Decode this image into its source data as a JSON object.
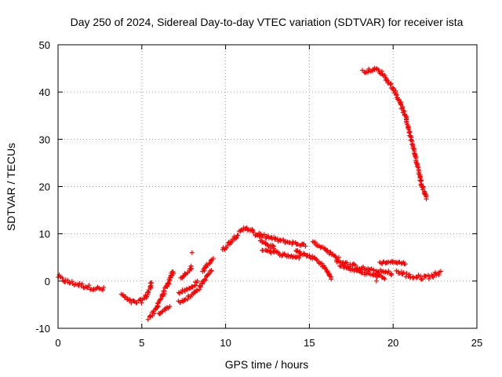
{
  "chart_data": {
    "type": "scatter",
    "title": "Day 250 of 2024, Sidereal Day-to-day VTEC variation (SDTVAR) for receiver ista",
    "xlabel": "GPS time / hours",
    "ylabel": "SDTVAR / TECUs",
    "xlim": [
      0,
      25
    ],
    "ylim": [
      -10,
      50
    ],
    "x_ticks": [
      0,
      5,
      10,
      15,
      20,
      25
    ],
    "y_ticks": [
      -10,
      0,
      10,
      20,
      30,
      40,
      50
    ],
    "grid": true,
    "marker": "plus",
    "color": "#ff0000",
    "series": [
      {
        "name": "SDTVAR",
        "segments": [
          {
            "points": [
              [
                0.0,
                1.0
              ],
              [
                0.3,
                0.2
              ],
              [
                0.6,
                -0.2
              ],
              [
                1.0,
                -0.6
              ],
              [
                1.5,
                -1.0
              ],
              [
                2.0,
                -1.4
              ],
              [
                2.5,
                -1.7
              ],
              [
                2.8,
                -1.8
              ]
            ],
            "spread": 0.9
          },
          {
            "points": [
              [
                3.8,
                -2.8
              ],
              [
                4.2,
                -4.2
              ],
              [
                4.6,
                -4.6
              ],
              [
                5.0,
                -4.2
              ],
              [
                5.3,
                -3.0
              ],
              [
                5.5,
                -1.5
              ],
              [
                5.6,
                0.2
              ]
            ],
            "spread": 0.9
          },
          {
            "points": [
              [
                5.4,
                -7.8
              ],
              [
                5.8,
                -6.5
              ],
              [
                6.0,
                -4.5
              ],
              [
                6.3,
                -2.5
              ],
              [
                6.6,
                -0.5
              ],
              [
                6.8,
                1.5
              ],
              [
                6.9,
                2.0
              ]
            ],
            "spread": 0.9
          },
          {
            "points": [
              [
                6.0,
                -7.0
              ],
              [
                6.4,
                -6.0
              ],
              [
                6.7,
                -5.2
              ]
            ],
            "spread": 0.5
          },
          {
            "points": [
              [
                7.2,
                -2.5
              ],
              [
                7.6,
                -2.0
              ],
              [
                7.9,
                -1.5
              ],
              [
                8.2,
                -0.7
              ],
              [
                8.3,
                0.0
              ]
            ],
            "spread": 0.6
          },
          {
            "points": [
              [
                7.3,
                0.5
              ],
              [
                7.6,
                1.5
              ],
              [
                7.9,
                2.5
              ],
              [
                8.0,
                3.2
              ]
            ],
            "spread": 0.5
          },
          {
            "points": [
              [
                7.2,
                -4.5
              ],
              [
                7.6,
                -3.8
              ],
              [
                8.0,
                -3.0
              ],
              [
                8.4,
                -1.5
              ],
              [
                8.8,
                0.5
              ],
              [
                9.0,
                1.5
              ],
              [
                9.2,
                2.5
              ]
            ],
            "spread": 0.7
          },
          {
            "points": [
              [
                8.6,
                2.0
              ],
              [
                9.0,
                3.8
              ],
              [
                9.3,
                5.0
              ]
            ],
            "spread": 0.6
          },
          {
            "points": [
              [
                9.8,
                6.5
              ],
              [
                10.2,
                8.0
              ],
              [
                10.6,
                9.5
              ],
              [
                11.0,
                10.6
              ],
              [
                11.2,
                11.4
              ],
              [
                11.5,
                10.8
              ],
              [
                11.8,
                9.8
              ],
              [
                12.2,
                8.5
              ],
              [
                12.6,
                7.5
              ],
              [
                13.0,
                7.0
              ]
            ],
            "spread": 0.9
          },
          {
            "points": [
              [
                12.0,
                9.8
              ],
              [
                12.6,
                9.2
              ],
              [
                13.2,
                8.6
              ],
              [
                13.8,
                8.2
              ],
              [
                14.4,
                7.8
              ],
              [
                14.8,
                7.4
              ]
            ],
            "spread": 0.7
          },
          {
            "points": [
              [
                12.2,
                6.8
              ],
              [
                12.8,
                6.2
              ],
              [
                13.4,
                5.6
              ],
              [
                14.0,
                5.2
              ],
              [
                14.5,
                5.0
              ]
            ],
            "spread": 0.7
          },
          {
            "points": [
              [
                14.2,
                6.4
              ],
              [
                14.6,
                5.8
              ],
              [
                15.0,
                5.2
              ],
              [
                15.2,
                4.8
              ]
            ],
            "spread": 0.6
          },
          {
            "points": [
              [
                15.2,
                8.2
              ],
              [
                15.6,
                7.6
              ],
              [
                16.0,
                6.6
              ],
              [
                16.4,
                5.6
              ],
              [
                16.8,
                4.6
              ]
            ],
            "spread": 0.6
          },
          {
            "points": [
              [
                15.2,
                5.2
              ],
              [
                15.6,
                4.0
              ],
              [
                15.9,
                2.8
              ],
              [
                16.2,
                1.4
              ],
              [
                16.3,
                0.4
              ]
            ],
            "spread": 0.5
          },
          {
            "points": [
              [
                16.6,
                4.5
              ],
              [
                17.2,
                3.6
              ],
              [
                17.8,
                3.0
              ],
              [
                18.4,
                2.4
              ],
              [
                19.0,
                2.0
              ],
              [
                19.6,
                1.8
              ],
              [
                20.0,
                1.6
              ]
            ],
            "spread": 0.9
          },
          {
            "points": [
              [
                16.8,
                3.2
              ],
              [
                17.4,
                2.6
              ],
              [
                18.0,
                2.0
              ],
              [
                18.6,
                1.4
              ],
              [
                19.2,
                1.0
              ],
              [
                19.6,
                0.6
              ]
            ],
            "spread": 0.6
          },
          {
            "points": [
              [
                19.2,
                3.8
              ],
              [
                19.6,
                4.0
              ],
              [
                20.0,
                4.0
              ],
              [
                20.4,
                3.9
              ],
              [
                20.8,
                3.7
              ]
            ],
            "spread": 0.4
          },
          {
            "points": [
              [
                20.2,
                2.0
              ],
              [
                20.6,
                1.5
              ],
              [
                21.0,
                1.0
              ],
              [
                21.4,
                0.8
              ],
              [
                21.8,
                0.8
              ],
              [
                22.2,
                1.0
              ],
              [
                22.6,
                1.5
              ],
              [
                22.9,
                2.0
              ]
            ],
            "spread": 1.0
          },
          {
            "points": [
              [
                18.2,
                44.3
              ],
              [
                18.6,
                44.6
              ],
              [
                19.0,
                44.8
              ],
              [
                19.3,
                44.1
              ],
              [
                19.6,
                42.8
              ],
              [
                20.0,
                40.8
              ],
              [
                20.4,
                38.0
              ],
              [
                20.8,
                34.0
              ],
              [
                21.1,
                29.8
              ],
              [
                21.4,
                25.0
              ],
              [
                21.7,
                20.5
              ],
              [
                22.0,
                17.2
              ]
            ],
            "spread": 0.7
          }
        ]
      }
    ]
  }
}
